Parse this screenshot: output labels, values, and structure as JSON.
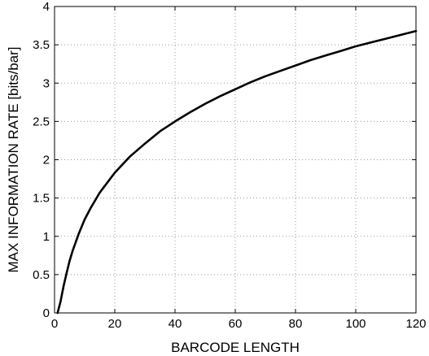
{
  "chart_data": {
    "type": "line",
    "title": "",
    "xlabel": "BARCODE LENGTH",
    "ylabel": "MAX INFORMATION RATE [bits/bar]",
    "xlim": [
      0,
      120
    ],
    "ylim": [
      0,
      4
    ],
    "xticks": [
      0,
      20,
      40,
      60,
      80,
      100,
      120
    ],
    "yticks": [
      0,
      0.5,
      1,
      1.5,
      2,
      2.5,
      3,
      3.5,
      4
    ],
    "ytick_labels": [
      "0",
      "0.5",
      "1",
      "1.5",
      "2",
      "2.5",
      "3",
      "3.5",
      "4"
    ],
    "grid": true,
    "series": [
      {
        "x": [
          1,
          2,
          3,
          4,
          5,
          6,
          8,
          10,
          12,
          15,
          20,
          25,
          30,
          35,
          40,
          45,
          50,
          55,
          60,
          65,
          70,
          75,
          80,
          85,
          90,
          95,
          100,
          105,
          110,
          115,
          120
        ],
        "y": [
          0.0,
          0.15,
          0.35,
          0.52,
          0.68,
          0.81,
          1.03,
          1.22,
          1.37,
          1.57,
          1.83,
          2.04,
          2.21,
          2.37,
          2.5,
          2.62,
          2.73,
          2.83,
          2.92,
          3.01,
          3.09,
          3.16,
          3.23,
          3.3,
          3.36,
          3.42,
          3.48,
          3.53,
          3.58,
          3.63,
          3.68
        ],
        "color": "#000000"
      }
    ]
  }
}
